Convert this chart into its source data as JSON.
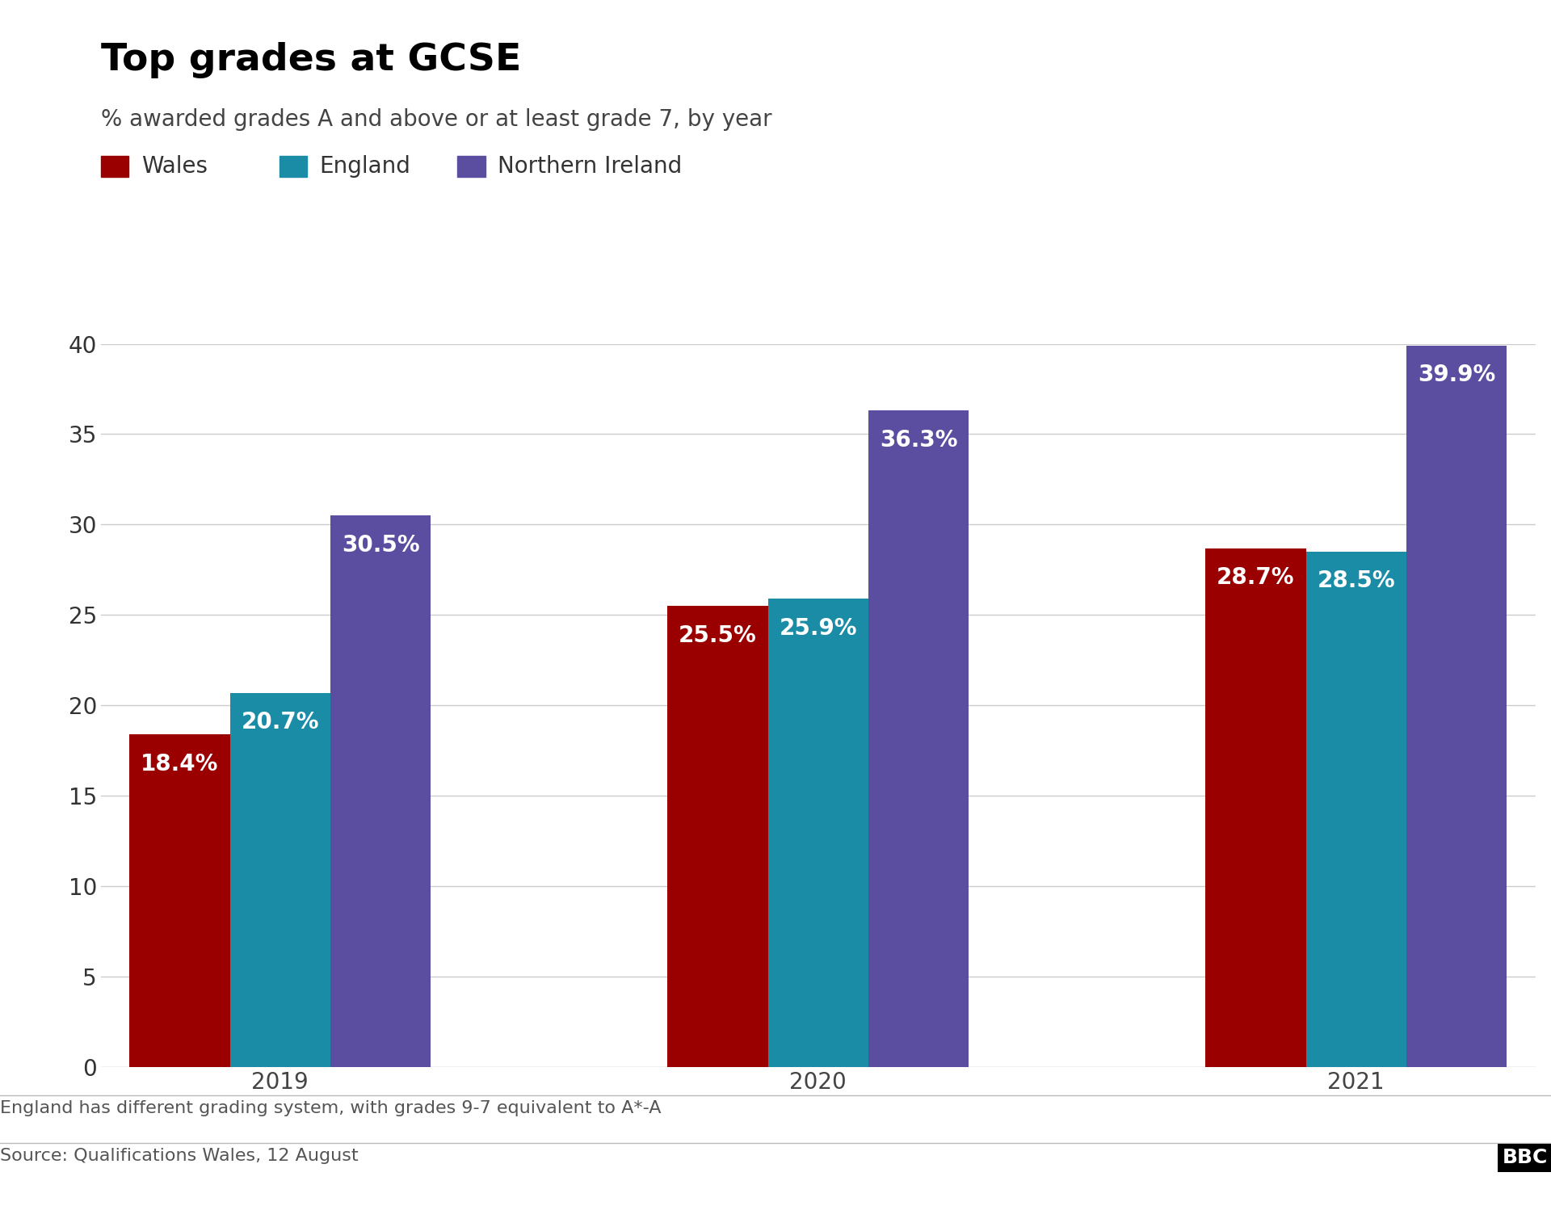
{
  "title": "Top grades at GCSE",
  "subtitle": "% awarded grades A and above or at least grade 7, by year",
  "footnote": "England has different grading system, with grades 9-7 equivalent to A*-A",
  "source": "Source: Qualifications Wales, 12 August",
  "years": [
    "2019",
    "2020",
    "2021"
  ],
  "series": {
    "Wales": [
      18.4,
      25.5,
      28.7
    ],
    "England": [
      20.7,
      25.9,
      28.5
    ],
    "Northern Ireland": [
      30.5,
      36.3,
      39.9
    ]
  },
  "colors": {
    "Wales": "#9b0000",
    "England": "#1b8ca6",
    "Northern Ireland": "#5b4ea0"
  },
  "ylim": [
    0,
    40
  ],
  "yticks": [
    0,
    5,
    10,
    15,
    20,
    25,
    30,
    35,
    40
  ],
  "bar_width": 0.28,
  "label_color": "#ffffff",
  "label_fontsize": 20,
  "tick_fontsize": 20,
  "title_fontsize": 34,
  "subtitle_fontsize": 20,
  "legend_fontsize": 20,
  "footnote_fontsize": 16,
  "source_fontsize": 16,
  "background_color": "#ffffff",
  "grid_color": "#cccccc"
}
